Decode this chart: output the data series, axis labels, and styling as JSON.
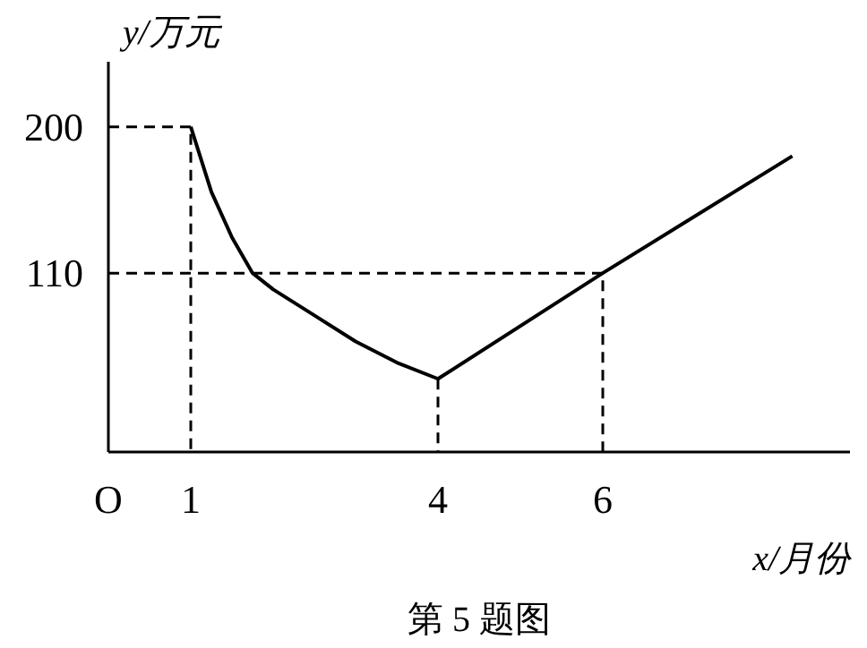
{
  "chart_data": {
    "type": "line",
    "title": "第 5 题图",
    "xlabel": "x/月份",
    "ylabel": "y/万元",
    "xlim": [
      0,
      9
    ],
    "ylim": [
      0,
      240
    ],
    "xticks": [
      {
        "value": 0,
        "label": "O"
      },
      1,
      4,
      6
    ],
    "yticks": [
      110,
      200
    ],
    "grid": false,
    "marker": "none",
    "series": [
      {
        "color": "#000000",
        "line_style": "solid",
        "x": [
          1,
          1.25,
          1.5,
          1.75,
          2,
          2.5,
          3,
          3.5,
          4
        ],
        "values": [
          200,
          160,
          132,
          110,
          100,
          84,
          68,
          55,
          45
        ]
      },
      {
        "color": "#000000",
        "line_style": "solid",
        "x": [
          4,
          6,
          8.3
        ],
        "values": [
          45,
          110,
          182
        ]
      },
      {
        "color": "#000000",
        "line_style": "dashed",
        "x": [
          0,
          1,
          1
        ],
        "values": [
          200,
          200,
          0
        ]
      },
      {
        "color": "#000000",
        "line_style": "dashed",
        "x": [
          0,
          6,
          6
        ],
        "values": [
          110,
          110,
          0
        ]
      },
      {
        "color": "#000000",
        "line_style": "dashed",
        "x": [
          4,
          4
        ],
        "values": [
          45,
          0
        ]
      }
    ]
  }
}
